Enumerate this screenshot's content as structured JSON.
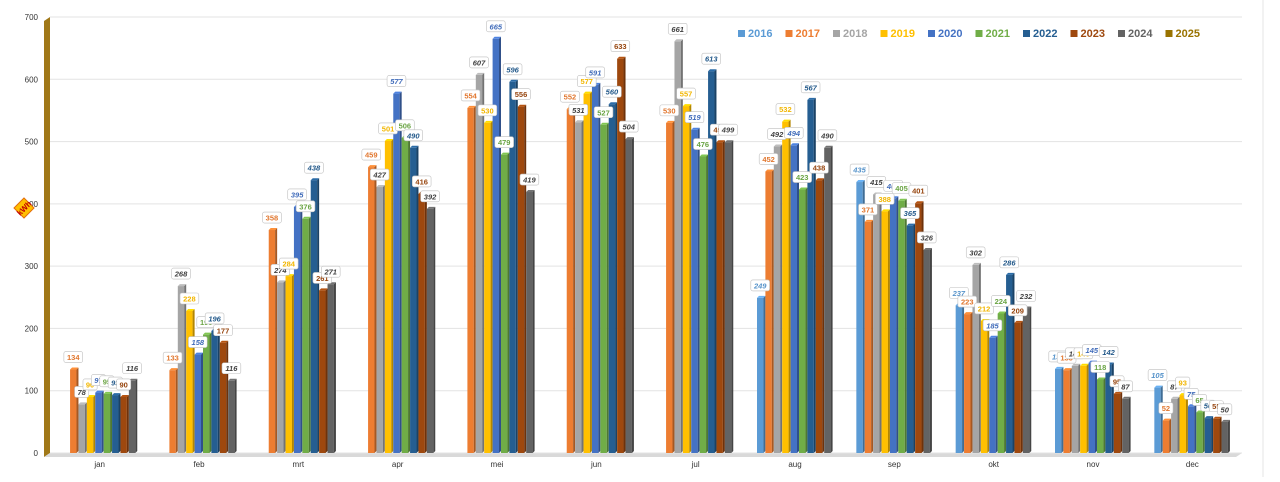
{
  "chart_data": {
    "type": "bar",
    "title": "",
    "xlabel": "",
    "ylabel": "kWh",
    "ylim": [
      0,
      700
    ],
    "yticks": [
      0,
      100,
      200,
      300,
      400,
      500,
      600,
      700
    ],
    "grid": true,
    "legend_position": "top-right",
    "categories": [
      "jan",
      "feb",
      "mrt",
      "apr",
      "mei",
      "jun",
      "jul",
      "aug",
      "sep",
      "okt",
      "nov",
      "dec"
    ],
    "series": [
      {
        "name": "2016",
        "color": "#5b9bd5",
        "values": [
          null,
          null,
          null,
          null,
          null,
          null,
          null,
          249,
          435,
          237,
          135,
          105
        ]
      },
      {
        "name": "2017",
        "color": "#ed7d31",
        "values": [
          134,
          133,
          358,
          459,
          554,
          552,
          530,
          452,
          371,
          223,
          133,
          52
        ]
      },
      {
        "name": "2018",
        "color": "#a5a5a5",
        "values": [
          78,
          268,
          274,
          427,
          607,
          531,
          661,
          492,
          415,
          302,
          140,
          87
        ]
      },
      {
        "name": "2019",
        "color": "#ffc000",
        "values": [
          90,
          228,
          284,
          501,
          530,
          577,
          557,
          532,
          388,
          212,
          140,
          93
        ]
      },
      {
        "name": "2020",
        "color": "#4472c4",
        "values": [
          97,
          158,
          395,
          577,
          665,
          591,
          519,
          494,
          409,
          185,
          145,
          75
        ]
      },
      {
        "name": "2021",
        "color": "#70ad47",
        "values": [
          95,
          190,
          376,
          506,
          479,
          527,
          476,
          423,
          405,
          224,
          118,
          65
        ]
      },
      {
        "name": "2022",
        "color": "#255e91",
        "values": [
          93,
          196,
          438,
          490,
          596,
          560,
          613,
          567,
          365,
          286,
          142,
          56
        ]
      },
      {
        "name": "2023",
        "color": "#9e480e",
        "values": [
          90,
          177,
          261,
          416,
          556,
          633,
          499,
          438,
          401,
          209,
          95,
          55
        ]
      },
      {
        "name": "2024",
        "color": "#636363",
        "values": [
          116,
          116,
          271,
          392,
          419,
          504,
          499,
          490,
          326,
          232,
          87,
          50
        ]
      },
      {
        "name": "2025",
        "color": "#997300",
        "values": [
          null,
          null,
          null,
          null,
          null,
          null,
          null,
          null,
          null,
          null,
          null,
          null
        ]
      }
    ]
  }
}
